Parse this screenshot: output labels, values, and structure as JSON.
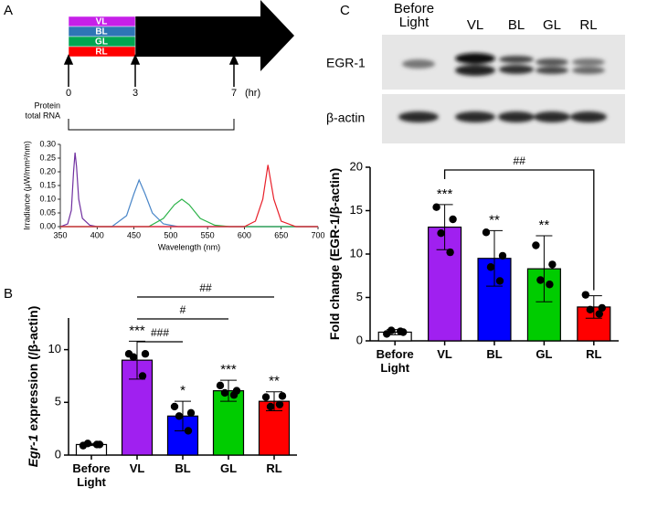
{
  "panels": {
    "a": "A",
    "b": "B",
    "c": "C"
  },
  "timeline": {
    "conditions": [
      "VL",
      "BL",
      "GL",
      "RL"
    ],
    "colors": [
      "#c61fe8",
      "#2e75b6",
      "#00a651",
      "#ff0000"
    ],
    "time_labels": [
      "0",
      "3",
      "7"
    ],
    "time_unit": "(hr)",
    "sample_labels": [
      "Protein",
      "total RNA"
    ]
  },
  "blot": {
    "lanes": [
      "Before Light",
      "VL",
      "BL",
      "GL",
      "RL"
    ],
    "rows": [
      "EGR-1",
      "β-actin"
    ]
  },
  "chart_data": [
    {
      "type": "line",
      "xlabel": "Wavelength (nm)",
      "ylabel": "Irradiance (μW/mm²/nm)",
      "xlim": [
        350,
        700
      ],
      "xticks": [
        350,
        400,
        450,
        500,
        550,
        600,
        650,
        700
      ],
      "ylim": [
        0,
        0.3
      ],
      "yticks": [
        {
          "value": 0,
          "label": "0.00"
        },
        {
          "value": 0.05,
          "label": "0.05"
        },
        {
          "value": 0.1,
          "label": "0.10"
        },
        {
          "value": 0.15,
          "label": "0.15"
        },
        {
          "value": 0.2,
          "label": "0.20"
        },
        {
          "value": 0.25,
          "label": "0.25"
        },
        {
          "value": 0.3,
          "label": "0.30"
        }
      ],
      "series": [
        {
          "color": "#7030a0",
          "x": [
            350,
            360,
            365,
            368,
            370,
            372,
            375,
            380,
            390,
            400,
            700
          ],
          "values": [
            0,
            0.01,
            0.06,
            0.2,
            0.27,
            0.22,
            0.1,
            0.03,
            0.005,
            0,
            0
          ]
        },
        {
          "color": "#4a86c8",
          "x": [
            350,
            420,
            440,
            450,
            457,
            465,
            475,
            490,
            510,
            700
          ],
          "values": [
            0,
            0,
            0.04,
            0.12,
            0.17,
            0.12,
            0.05,
            0.01,
            0,
            0
          ]
        },
        {
          "color": "#2db34a",
          "x": [
            350,
            470,
            490,
            505,
            515,
            525,
            540,
            560,
            580,
            700
          ],
          "values": [
            0,
            0,
            0.03,
            0.08,
            0.1,
            0.08,
            0.03,
            0.005,
            0,
            0
          ]
        },
        {
          "color": "#e8202a",
          "x": [
            350,
            600,
            615,
            625,
            632,
            640,
            650,
            670,
            700
          ],
          "values": [
            0,
            0,
            0.02,
            0.1,
            0.225,
            0.1,
            0.02,
            0,
            0
          ]
        }
      ]
    },
    {
      "type": "bar",
      "ylabel_italic": "Egr-1",
      "ylabel": "expression (/β-actin)",
      "categories": [
        "Before Light",
        "VL",
        "BL",
        "GL",
        "RL"
      ],
      "values": [
        1,
        9,
        3.7,
        6.1,
        5.1
      ],
      "errors": [
        0.1,
        1.8,
        1.4,
        1.0,
        0.9
      ],
      "points": [
        [
          0.9,
          1.0,
          1.1,
          1.0
        ],
        [
          9.6,
          9.6,
          9.3,
          7.5
        ],
        [
          4.6,
          4.0,
          3.7,
          2.3
        ],
        [
          6.6,
          6.1,
          5.9,
          5.7
        ],
        [
          5.5,
          5.6,
          4.6,
          4.8
        ]
      ],
      "colors": [
        "#ffffff",
        "#a020f0",
        "#0000ff",
        "#00cc00",
        "#ff0000"
      ],
      "significance": [
        null,
        "***",
        "*",
        "***",
        "**"
      ],
      "comparisons": [
        {
          "from": "VL",
          "to": "BL",
          "label": "###"
        },
        {
          "from": "VL",
          "to": "GL",
          "label": "#"
        },
        {
          "from": "VL",
          "to": "RL",
          "label": "##"
        }
      ],
      "ylim": [
        0,
        13
      ],
      "yticks": [
        0,
        5,
        10
      ]
    },
    {
      "type": "bar",
      "ylabel": "Fold change (EGR-1/β-actin)",
      "categories": [
        "Before Light",
        "VL",
        "BL",
        "GL",
        "RL"
      ],
      "values": [
        1.0,
        13.1,
        9.5,
        8.3,
        3.9
      ],
      "errors": [
        0.3,
        2.6,
        3.2,
        3.8,
        1.3
      ],
      "points": [
        [
          0.8,
          1.0,
          1.2,
          1.1
        ],
        [
          15.4,
          14.0,
          12.4,
          10.2
        ],
        [
          12.5,
          9.8,
          8.5,
          6.9
        ],
        [
          11.0,
          8.8,
          7.0,
          6.5
        ],
        [
          5.3,
          3.8,
          3.6,
          3.1
        ]
      ],
      "colors": [
        "#ffffff",
        "#a020f0",
        "#0000ff",
        "#00cc00",
        "#ff0000"
      ],
      "significance": [
        null,
        "***",
        "**",
        "**",
        null
      ],
      "comparisons": [
        {
          "from": "VL",
          "to": "RL",
          "label": "##"
        }
      ],
      "ylim": [
        0,
        20
      ],
      "yticks": [
        0,
        5,
        10,
        15,
        20
      ]
    }
  ]
}
